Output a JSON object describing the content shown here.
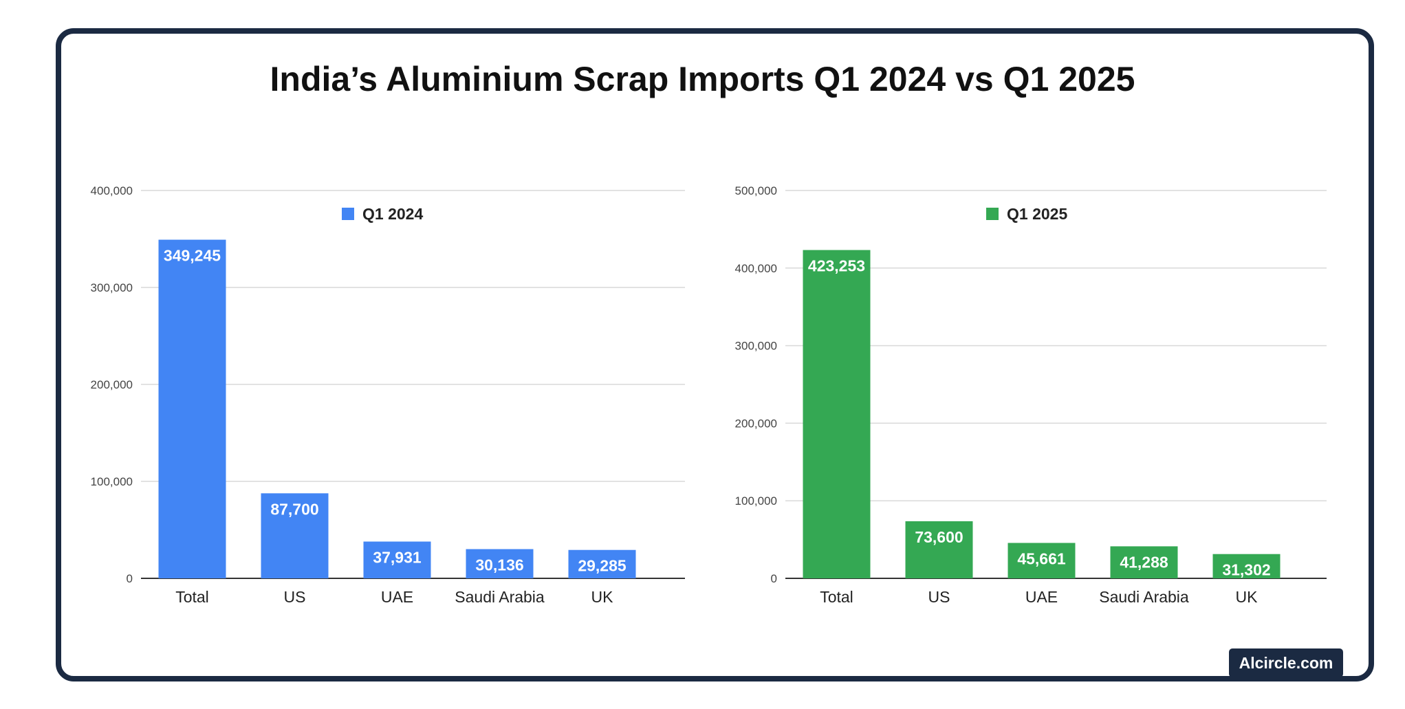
{
  "title": "India’s Aluminium Scrap Imports Q1 2024 vs Q1 2025",
  "brand": "Alcircle.com",
  "chart_data": [
    {
      "type": "bar",
      "categories": [
        "Total",
        "US",
        "UAE",
        "Saudi Arabia",
        "UK"
      ],
      "series": [
        {
          "name": "Q1 2024",
          "values": [
            349245,
            87700,
            37931,
            30136,
            29285
          ]
        }
      ],
      "data_labels": [
        "349,245",
        "87,700",
        "37,931",
        "30,136",
        "29,285"
      ],
      "ylim": [
        0,
        400000
      ],
      "yticks": [
        0,
        100000,
        200000,
        300000,
        400000
      ],
      "ytick_labels": [
        "0",
        "100,000",
        "200,000",
        "300,000",
        "400,000"
      ],
      "color": "#4285f4",
      "grid": true,
      "legend": "top-center"
    },
    {
      "type": "bar",
      "categories": [
        "Total",
        "US",
        "UAE",
        "Saudi Arabia",
        "UK"
      ],
      "series": [
        {
          "name": "Q1 2025",
          "values": [
            423253,
            73600,
            45661,
            41288,
            31302
          ]
        }
      ],
      "data_labels": [
        "423,253",
        "73,600",
        "45,661",
        "41,288",
        "31,302"
      ],
      "ylim": [
        0,
        500000
      ],
      "yticks": [
        0,
        100000,
        200000,
        300000,
        400000,
        500000
      ],
      "ytick_labels": [
        "0",
        "100,000",
        "200,000",
        "300,000",
        "400,000",
        "500,000"
      ],
      "color": "#34a853",
      "grid": true,
      "legend": "top-center"
    }
  ]
}
